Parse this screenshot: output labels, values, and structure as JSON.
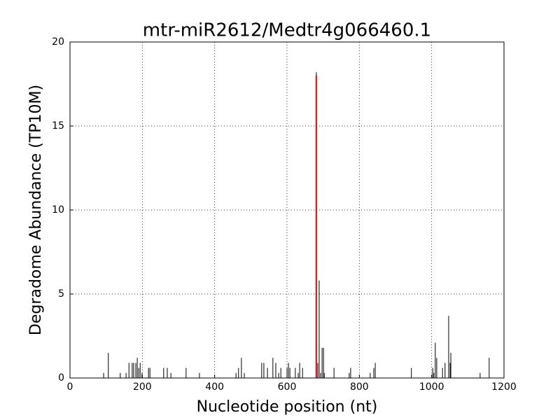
{
  "chart_data": {
    "type": "stem",
    "title": "mtr-miR2612/Medtr4g066460.1",
    "x_label": "Nucleotide position (nt)",
    "y_label": "Degradome Abundance (TP10M)",
    "xlim": [
      0,
      1200
    ],
    "xticks": [
      0,
      200,
      400,
      600,
      800,
      1000,
      1200
    ],
    "ylim": [
      0,
      20
    ],
    "yticks": [
      0,
      5,
      10,
      15,
      20
    ],
    "grid": true,
    "series": [
      {
        "color": "#000000",
        "x": [
          93,
          106,
          139,
          155,
          163,
          172,
          176,
          182,
          186,
          190,
          194,
          199,
          217,
          221,
          259,
          269,
          279,
          321,
          358,
          459,
          466,
          474,
          482,
          530,
          536,
          546,
          561,
          569,
          577,
          583,
          600,
          604,
          608,
          623,
          631,
          635,
          643,
          681,
          685,
          689,
          693,
          697,
          701,
          703,
          730,
          772,
          776,
          830,
          840,
          844,
          944,
          1003,
          1006,
          1010,
          1014,
          1030,
          1037,
          1047,
          1051,
          1053,
          1134,
          1159
        ],
        "values": [
          0.3,
          1.5,
          0.3,
          0.3,
          0.9,
          0.9,
          0.9,
          0.9,
          1.2,
          0.6,
          0.9,
          0.3,
          0.6,
          0.6,
          0.6,
          0.6,
          0.3,
          0.6,
          0.3,
          0.3,
          0.6,
          1.2,
          0.3,
          0.9,
          0.9,
          0.6,
          1.2,
          0.9,
          0.3,
          0.6,
          0.6,
          0.9,
          0.6,
          0.6,
          0.3,
          0.9,
          0.6,
          18.2,
          0.9,
          5.8,
          0.3,
          1.8,
          1.8,
          0.3,
          0.6,
          0.3,
          0.6,
          0.3,
          0.6,
          0.9,
          0.6,
          0.6,
          0.3,
          2.1,
          1.2,
          0.6,
          0.9,
          3.7,
          0.9,
          1.5,
          0.3,
          1.2
        ]
      },
      {
        "color": "#ff0000",
        "x": [
          681
        ],
        "values": [
          18
        ]
      }
    ]
  }
}
